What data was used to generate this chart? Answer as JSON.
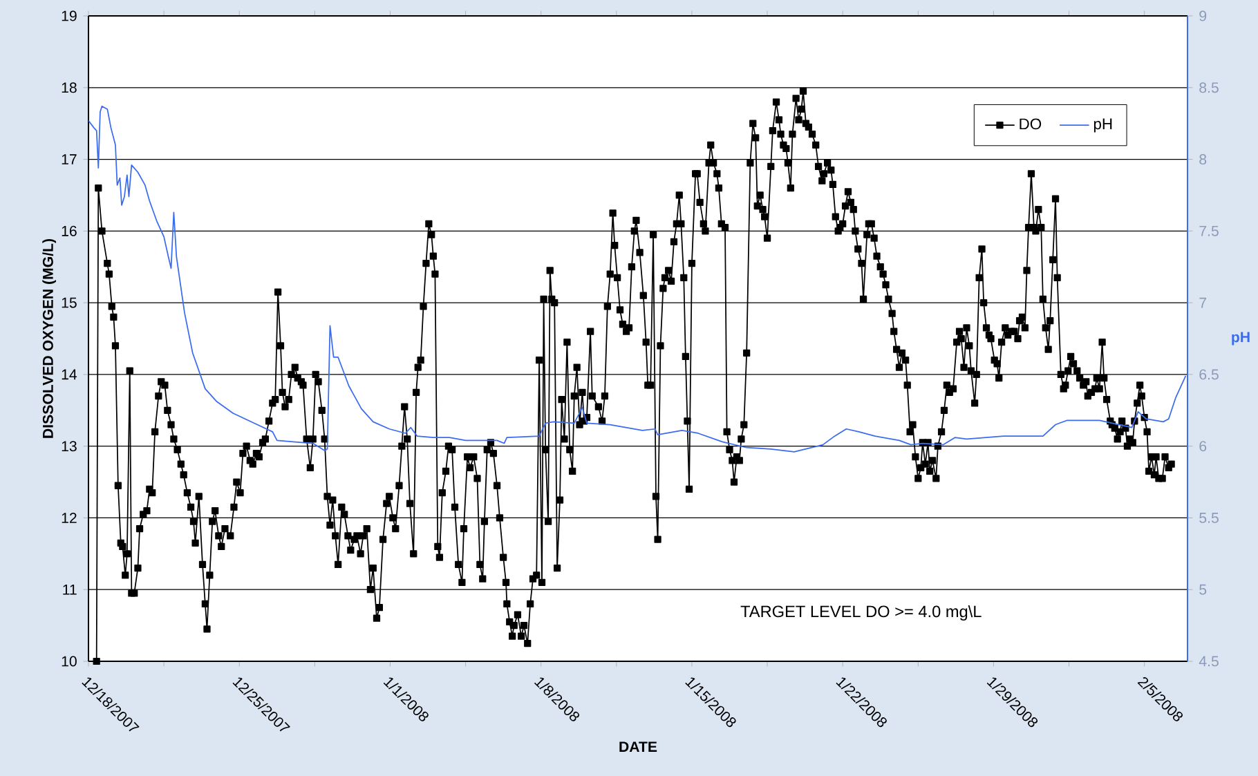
{
  "chart_data": {
    "type": "line",
    "xlabel": "DATE",
    "ylabel": "DISSOLVED OXYGEN (MG/L)",
    "y2label": "pH",
    "annotations": [
      "TARGET LEVEL DO >= 4.0 mg\\L"
    ],
    "xlim": [
      "2007-12-18T00:00",
      "2008-02-07T00:00"
    ],
    "xticks": [
      {
        "value": "2007-12-18T00:00",
        "label": "12/18/2007"
      },
      {
        "value": "2007-12-21T12:00",
        "label": null
      },
      {
        "value": "2007-12-25T00:00",
        "label": "12/25/2007"
      },
      {
        "value": "2007-12-28T12:00",
        "label": null
      },
      {
        "value": "2008-01-01T00:00",
        "label": "1/1/2008"
      },
      {
        "value": "2008-01-04T12:00",
        "label": null
      },
      {
        "value": "2008-01-08T00:00",
        "label": "1/8/2008"
      },
      {
        "value": "2008-01-11T12:00",
        "label": null
      },
      {
        "value": "2008-01-15T00:00",
        "label": "1/15/2008"
      },
      {
        "value": "2008-01-18T12:00",
        "label": null
      },
      {
        "value": "2008-01-22T00:00",
        "label": "1/22/2008"
      },
      {
        "value": "2008-01-25T12:00",
        "label": null
      },
      {
        "value": "2008-01-29T00:00",
        "label": "1/29/2008"
      },
      {
        "value": "2008-02-01T12:00",
        "label": null
      },
      {
        "value": "2008-02-05T00:00",
        "label": "2/5/2008"
      }
    ],
    "ylim": [
      10,
      19
    ],
    "yticks": [
      10,
      11,
      12,
      13,
      14,
      15,
      16,
      17,
      18,
      19
    ],
    "y2lim": [
      4.5,
      9
    ],
    "y2ticks": [
      4.5,
      5,
      5.5,
      6,
      6.5,
      7,
      7.5,
      8,
      8.5,
      9
    ],
    "grid": "y",
    "legend": "top right",
    "series": [
      {
        "name": "DO",
        "color": "#000000",
        "marker": "square",
        "x": [
          "2007-12-18T09:00",
          "2007-12-18T11:00",
          "2007-12-18T15:00",
          "2007-12-18T21:00",
          "2007-12-18T23:00",
          "2007-12-19T02:00",
          "2007-12-19T04:00",
          "2007-12-19T06:00",
          "2007-12-19T09:00",
          "2007-12-19T12:00",
          "2007-12-19T14:00",
          "2007-12-19T17:00",
          "2007-12-19T19:00",
          "2007-12-19T22:00",
          "2007-12-20T00:00",
          "2007-12-20T03:00",
          "2007-12-20T07:00",
          "2007-12-20T09:00",
          "2007-12-20T13:00",
          "2007-12-20T17:00",
          "2007-12-20T20:00",
          "2007-12-20T23:00",
          "2007-12-21T02:00",
          "2007-12-21T06:00",
          "2007-12-21T09:00",
          "2007-12-21T13:00",
          "2007-12-21T16:00",
          "2007-12-21T20:00",
          "2007-12-21T23:00",
          "2007-12-22T03:00",
          "2007-12-22T07:00",
          "2007-12-22T10:00",
          "2007-12-22T14:00",
          "2007-12-22T18:00",
          "2007-12-22T21:00",
          "2007-12-22T23:00",
          "2007-12-23T03:00",
          "2007-12-23T07:00",
          "2007-12-23T10:00",
          "2007-12-23T12:00",
          "2007-12-23T15:00",
          "2007-12-23T18:00",
          "2007-12-23T21:00",
          "2007-12-24T01:00",
          "2007-12-24T04:00",
          "2007-12-24T08:00",
          "2007-12-24T14:00",
          "2007-12-24T18:00",
          "2007-12-24T21:00",
          "2007-12-25T01:00",
          "2007-12-25T04:00",
          "2007-12-25T08:00",
          "2007-12-25T12:00",
          "2007-12-25T15:00",
          "2007-12-25T19:00",
          "2007-12-25T22:00",
          "2007-12-26T02:00",
          "2007-12-26T05:00",
          "2007-12-26T09:00",
          "2007-12-26T13:00",
          "2007-12-26T16:00",
          "2007-12-26T19:00",
          "2007-12-26T22:00",
          "2007-12-27T00:00",
          "2007-12-27T03:00",
          "2007-12-27T07:00",
          "2007-12-27T10:00",
          "2007-12-27T14:00",
          "2007-12-27T17:00",
          "2007-12-27T21:00",
          "2007-12-27T23:00",
          "2007-12-28T03:00",
          "2007-12-28T07:00",
          "2007-12-28T10:00",
          "2007-12-28T13:00",
          "2007-12-28T16:00",
          "2007-12-28T20:00",
          "2007-12-28T23:00",
          "2007-12-29T02:00",
          "2007-12-29T05:00",
          "2007-12-29T08:00",
          "2007-12-29T11:00",
          "2007-12-29T14:00",
          "2007-12-29T18:00",
          "2007-12-29T21:00",
          "2007-12-30T01:00",
          "2007-12-30T04:00",
          "2007-12-30T08:00",
          "2007-12-30T11:00",
          "2007-12-30T15:00",
          "2007-12-30T18:00",
          "2007-12-30T22:00",
          "2007-12-31T02:00",
          "2007-12-31T05:00",
          "2007-12-31T09:00",
          "2007-12-31T12:00",
          "2007-12-31T16:00",
          "2007-12-31T20:00",
          "2007-12-31T23:00",
          "2008-01-01T03:00",
          "2008-01-01T06:00",
          "2008-01-01T10:00",
          "2008-01-01T13:00",
          "2008-01-01T16:00",
          "2008-01-01T19:00",
          "2008-01-01T22:00",
          "2008-01-02T02:00",
          "2008-01-02T05:00",
          "2008-01-02T07:00",
          "2008-01-02T10:00",
          "2008-01-02T13:00",
          "2008-01-02T16:00",
          "2008-01-02T19:00",
          "2008-01-02T22:00",
          "2008-01-03T00:00",
          "2008-01-03T02:00",
          "2008-01-03T05:00",
          "2008-01-03T07:00",
          "2008-01-03T10:00",
          "2008-01-03T14:00",
          "2008-01-03T17:00",
          "2008-01-03T21:00",
          "2008-01-04T00:00",
          "2008-01-04T04:00",
          "2008-01-04T08:00",
          "2008-01-04T10:00",
          "2008-01-04T14:00",
          "2008-01-04T17:00",
          "2008-01-04T21:00",
          "2008-01-05T01:00",
          "2008-01-05T04:00",
          "2008-01-05T07:00",
          "2008-01-05T09:00",
          "2008-01-05T12:00",
          "2008-01-05T16:00",
          "2008-01-05T19:00",
          "2008-01-05T23:00",
          "2008-01-06T02:00",
          "2008-01-06T06:00",
          "2008-01-06T09:00",
          "2008-01-06T10:00",
          "2008-01-06T13:00",
          "2008-01-06T16:00",
          "2008-01-06T18:00",
          "2008-01-06T22:00",
          "2008-01-07T02:00",
          "2008-01-07T05:00",
          "2008-01-07T09:00",
          "2008-01-07T12:00",
          "2008-01-07T15:00",
          "2008-01-07T19:00",
          "2008-01-07T22:00",
          "2008-01-08T01:00",
          "2008-01-08T03:00",
          "2008-01-08T05:00",
          "2008-01-08T08:00",
          "2008-01-08T10:00",
          "2008-01-08T12:00",
          "2008-01-08T15:00",
          "2008-01-08T18:00",
          "2008-01-08T21:00",
          "2008-01-08T23:00",
          "2008-01-09T02:00",
          "2008-01-09T05:00",
          "2008-01-09T08:00",
          "2008-01-09T11:00",
          "2008-01-09T13:00",
          "2008-01-09T16:00",
          "2008-01-09T19:00",
          "2008-01-09T22:00",
          "2008-01-10T00:00",
          "2008-01-10T03:00",
          "2008-01-10T07:00",
          "2008-01-10T09:00",
          "2008-01-10T16:00",
          "2008-01-10T20:00",
          "2008-01-10T23:00",
          "2008-01-11T02:00",
          "2008-01-11T05:00",
          "2008-01-11T08:00",
          "2008-01-11T10:00",
          "2008-01-11T13:00",
          "2008-01-11T16:00",
          "2008-01-11T19:00",
          "2008-01-11T23:00",
          "2008-01-12T02:00",
          "2008-01-12T05:00",
          "2008-01-12T08:00",
          "2008-01-12T10:00",
          "2008-01-12T14:00",
          "2008-01-12T18:00",
          "2008-01-12T21:00",
          "2008-01-12T23:00",
          "2008-01-13T02:00",
          "2008-01-13T05:00",
          "2008-01-13T08:00",
          "2008-01-13T10:00",
          "2008-01-13T13:00",
          "2008-01-13T16:00",
          "2008-01-13T18:00",
          "2008-01-13T22:00",
          "2008-01-14T01:00",
          "2008-01-14T04:00",
          "2008-01-14T07:00",
          "2008-01-14T10:00",
          "2008-01-14T12:00",
          "2008-01-14T15:00",
          "2008-01-14T17:00",
          "2008-01-14T19:00",
          "2008-01-14T21:00",
          "2008-01-15T00:00",
          "2008-01-15T04:00",
          "2008-01-15T06:00",
          "2008-01-15T09:00",
          "2008-01-15T13:00",
          "2008-01-15T15:00",
          "2008-01-15T19:00",
          "2008-01-15T21:00",
          "2008-01-16T00:00",
          "2008-01-16T04:00",
          "2008-01-16T06:00",
          "2008-01-16T09:00",
          "2008-01-16T13:00",
          "2008-01-16T15:00",
          "2008-01-16T18:00",
          "2008-01-16T21:00",
          "2008-01-16T23:00",
          "2008-01-17T02:00",
          "2008-01-17T05:00",
          "2008-01-17T07:00",
          "2008-01-17T10:00",
          "2008-01-17T13:00",
          "2008-01-17T17:00",
          "2008-01-17T20:00",
          "2008-01-17T23:00",
          "2008-01-18T01:00",
          "2008-01-18T04:00",
          "2008-01-18T07:00",
          "2008-01-18T09:00",
          "2008-01-18T12:00",
          "2008-01-18T16:00",
          "2008-01-18T18:00",
          "2008-01-18T22:00",
          "2008-01-19T01:00",
          "2008-01-19T03:00",
          "2008-01-19T06:00",
          "2008-01-19T09:00",
          "2008-01-19T11:00",
          "2008-01-19T14:00",
          "2008-01-19T16:00",
          "2008-01-19T20:00",
          "2008-01-19T23:00",
          "2008-01-20T02:00",
          "2008-01-20T04:00",
          "2008-01-20T07:00",
          "2008-01-20T10:00",
          "2008-01-20T14:00",
          "2008-01-20T18:00",
          "2008-01-20T21:00",
          "2008-01-21T01:00",
          "2008-01-21T03:00",
          "2008-01-21T07:00",
          "2008-01-21T11:00",
          "2008-01-21T13:00",
          "2008-01-21T16:00",
          "2008-01-21T19:00",
          "2008-01-21T21:00",
          "2008-01-22T00:00",
          "2008-01-22T03:00",
          "2008-01-22T06:00",
          "2008-01-22T09:00",
          "2008-01-22T12:00",
          "2008-01-22T14:00",
          "2008-01-22T17:00",
          "2008-01-22T21:00",
          "2008-01-22T23:00",
          "2008-01-23T03:00",
          "2008-01-23T05:00",
          "2008-01-23T08:00",
          "2008-01-23T11:00",
          "2008-01-23T14:00",
          "2008-01-23T18:00",
          "2008-01-23T21:00",
          "2008-01-24T00:00",
          "2008-01-24T03:00",
          "2008-01-24T07:00",
          "2008-01-24T09:00",
          "2008-01-24T12:00",
          "2008-01-24T15:00",
          "2008-01-24T18:00",
          "2008-01-24T22:00",
          "2008-01-25T00:00",
          "2008-01-25T03:00",
          "2008-01-25T06:00",
          "2008-01-25T09:00",
          "2008-01-25T12:00",
          "2008-01-25T15:00",
          "2008-01-25T17:00",
          "2008-01-25T20:00",
          "2008-01-25T23:00",
          "2008-01-26T01:00",
          "2008-01-26T04:00",
          "2008-01-26T08:00",
          "2008-01-26T10:00",
          "2008-01-26T14:00",
          "2008-01-26T17:00",
          "2008-01-26T20:00",
          "2008-01-26T23:00",
          "2008-01-27T03:00",
          "2008-01-27T07:00",
          "2008-01-27T10:00",
          "2008-01-27T12:00",
          "2008-01-27T15:00",
          "2008-01-27T18:00",
          "2008-01-27T21:00",
          "2008-01-27T23:00",
          "2008-01-28T03:00",
          "2008-01-28T05:00",
          "2008-01-28T08:00",
          "2008-01-28T11:00",
          "2008-01-28T13:00",
          "2008-01-28T16:00",
          "2008-01-28T19:00",
          "2008-01-28T21:00",
          "2008-01-29T01:00",
          "2008-01-29T04:00",
          "2008-01-29T06:00",
          "2008-01-29T09:00",
          "2008-01-29T13:00",
          "2008-01-29T16:00",
          "2008-01-29T20:00",
          "2008-01-29T23:00",
          "2008-01-30T03:00",
          "2008-01-30T05:00",
          "2008-01-30T08:00",
          "2008-01-30T11:00",
          "2008-01-30T13:00",
          "2008-01-30T15:00",
          "2008-01-30T18:00",
          "2008-01-30T21:00",
          "2008-01-30T23:00",
          "2008-01-31T02:00",
          "2008-01-31T05:00",
          "2008-01-31T07:00",
          "2008-01-31T10:00",
          "2008-01-31T13:00",
          "2008-01-31T15:00",
          "2008-01-31T18:00",
          "2008-01-31T21:00",
          "2008-01-31T23:00",
          "2008-02-01T03:00",
          "2008-02-01T06:00",
          "2008-02-01T08:00",
          "2008-02-01T11:00",
          "2008-02-01T14:00",
          "2008-02-01T17:00",
          "2008-02-01T21:00",
          "2008-02-02T00:00",
          "2008-02-02T04:00",
          "2008-02-02T07:00",
          "2008-02-02T09:00",
          "2008-02-02T13:00",
          "2008-02-02T17:00",
          "2008-02-02T19:00",
          "2008-02-02T22:00",
          "2008-02-03T01:00",
          "2008-02-03T03:00",
          "2008-02-03T06:00",
          "2008-02-03T10:00",
          "2008-02-03T12:00",
          "2008-02-03T15:00",
          "2008-02-03T18:00",
          "2008-02-03T21:00",
          "2008-02-03T23:00",
          "2008-02-04T03:00",
          "2008-02-04T05:00",
          "2008-02-04T08:00",
          "2008-02-04T11:00",
          "2008-02-04T13:00",
          "2008-02-04T16:00",
          "2008-02-04T19:00",
          "2008-02-04T21:00",
          "2008-02-05T00:00",
          "2008-02-05T03:00",
          "2008-02-05T05:00",
          "2008-02-05T08:00",
          "2008-02-05T11:00",
          "2008-02-05T13:00",
          "2008-02-05T16:00",
          "2008-02-05T20:00",
          "2008-02-05T23:00",
          "2008-02-06T03:00",
          "2008-02-06T06:00"
        ],
        "values": [
          10,
          16.6,
          16.0,
          15.55,
          15.4,
          14.95,
          14.8,
          14.4,
          12.45,
          11.65,
          11.6,
          11.2,
          11.5,
          14.05,
          10.95,
          10.95,
          11.3,
          11.85,
          12.05,
          12.1,
          12.4,
          12.35,
          13.2,
          13.7,
          13.9,
          13.85,
          13.5,
          13.3,
          13.1,
          12.95,
          12.75,
          12.6,
          12.35,
          12.15,
          11.95,
          11.65,
          12.3,
          11.35,
          10.8,
          10.45,
          11.2,
          11.95,
          12.1,
          11.75,
          11.6,
          11.85,
          11.75,
          12.15,
          12.5,
          12.35,
          12.9,
          13.0,
          12.8,
          12.75,
          12.9,
          12.85,
          13.05,
          13.1,
          13.35,
          13.6,
          13.65,
          15.15,
          14.4,
          13.75,
          13.55,
          13.65,
          14.0,
          14.1,
          13.95,
          13.9,
          13.85,
          13.1,
          12.7,
          13.1,
          14.0,
          13.9,
          13.5,
          13.1,
          12.3,
          11.9,
          12.25,
          11.75,
          11.35,
          12.15,
          12.05,
          11.75,
          11.55,
          11.7,
          11.75,
          11.5,
          11.75,
          11.85,
          11.0,
          11.3,
          10.6,
          10.75,
          11.7,
          12.2,
          12.3,
          12.0,
          11.85,
          12.45,
          13.0,
          13.55,
          13.1,
          12.2,
          11.5,
          13.75,
          14.1,
          14.2,
          14.95,
          15.55,
          16.1,
          15.95,
          15.65,
          15.4,
          11.6,
          11.45,
          12.35,
          12.65,
          13.0,
          12.95,
          12.15,
          11.35,
          11.1,
          11.85,
          12.85,
          12.7,
          12.85,
          12.55,
          11.35,
          11.15,
          11.95,
          12.95,
          13.05,
          12.9,
          12.45,
          12.0,
          11.45,
          11.1,
          10.8,
          10.55,
          10.35,
          10.5,
          10.65,
          10.35,
          10.5,
          10.25,
          10.8,
          11.15,
          11.2,
          14.2,
          11.1,
          15.05,
          12.95,
          11.95,
          15.45,
          15.05,
          15.0,
          11.3,
          12.25,
          13.65,
          13.1,
          14.45,
          12.95,
          12.65,
          13.7,
          14.1,
          13.3,
          13.75,
          13.35,
          13.4,
          14.6,
          13.7,
          13.55,
          13.35,
          13.7,
          14.95,
          15.4,
          16.25,
          15.8,
          15.35,
          14.9,
          14.7,
          14.6,
          14.65,
          15.5,
          16.0,
          16.15,
          15.7,
          15.1,
          14.45,
          13.85,
          13.85,
          15.95,
          12.3,
          11.7,
          14.4,
          15.2,
          15.35,
          15.45,
          15.3,
          15.85,
          16.1,
          16.5,
          16.1,
          15.35,
          14.25,
          13.35,
          12.4,
          15.55,
          16.8,
          16.8,
          16.4,
          16.1,
          16.0,
          16.95,
          17.2,
          16.95,
          16.8,
          16.6,
          16.1,
          16.05,
          13.2,
          12.95,
          12.8,
          12.5,
          12.85,
          12.8,
          13.1,
          13.3,
          14.3,
          16.95,
          17.5,
          17.3,
          16.35,
          16.5,
          16.3,
          16.2,
          15.9,
          16.9,
          17.4,
          17.8,
          17.55,
          17.35,
          17.2,
          17.15,
          16.95,
          16.6,
          17.35,
          17.85,
          17.55,
          17.7,
          17.95,
          17.5,
          17.45,
          17.35,
          17.2,
          16.9,
          16.7,
          16.8,
          16.95,
          16.85,
          16.65,
          16.2,
          16.0,
          16.05,
          16.1,
          16.35,
          16.55,
          16.4,
          16.3,
          16.0,
          15.75,
          15.55,
          15.05,
          15.95,
          16.1,
          16.1,
          15.9,
          15.65,
          15.5,
          15.4,
          15.25,
          15.05,
          14.85,
          14.6,
          14.35,
          14.1,
          14.3,
          14.2,
          13.85,
          13.2,
          13.3,
          12.85,
          12.55,
          12.7,
          13.05,
          12.75,
          13.05,
          12.65,
          12.8,
          12.55,
          13.0,
          13.2,
          13.5,
          13.85,
          13.75,
          13.8,
          14.45,
          14.6,
          14.5,
          14.1,
          14.65,
          14.4,
          14.05,
          13.6,
          14.0,
          15.35,
          15.75,
          15.0,
          14.65,
          14.55,
          14.5,
          14.2,
          14.15,
          13.95,
          14.45,
          14.65,
          14.55,
          14.6,
          14.6,
          14.5,
          14.75,
          14.8,
          14.65,
          15.45,
          16.05,
          16.8,
          16.05,
          16.0,
          16.3,
          16.05,
          15.05,
          14.65,
          14.35,
          14.75,
          15.6,
          16.45,
          15.35,
          14.0,
          13.8,
          13.85,
          14.05,
          14.25,
          14.15,
          14.05,
          13.95,
          13.85,
          13.9,
          13.7,
          13.75,
          13.8,
          13.95,
          13.8,
          14.45,
          13.95,
          13.65,
          13.35,
          13.3,
          13.25,
          13.1,
          13.2,
          13.35,
          13.25,
          13.0,
          13.1,
          13.05,
          13.35,
          13.6,
          13.85,
          13.7,
          13.4,
          13.2,
          12.65,
          12.85,
          12.6,
          12.85,
          12.55,
          12.55,
          12.85,
          12.7,
          12.75
        ]
      },
      {
        "name": "pH",
        "color": "#3b6cf0",
        "marker": "none",
        "axis": "y2",
        "x": [
          "2007-12-18T00:00",
          "2007-12-18T06:00",
          "2007-12-18T09:00",
          "2007-12-18T11:00",
          "2007-12-18T13:00",
          "2007-12-18T15:00",
          "2007-12-18T21:00",
          "2007-12-19T01:00",
          "2007-12-19T06:00",
          "2007-12-19T08:00",
          "2007-12-19T11:00",
          "2007-12-19T13:00",
          "2007-12-19T16:00",
          "2007-12-19T19:00",
          "2007-12-19T21:00",
          "2007-12-20T00:00",
          "2007-12-20T07:00",
          "2007-12-20T15:00",
          "2007-12-20T20:00",
          "2007-12-21T04:00",
          "2007-12-21T12:00",
          "2007-12-21T17:00",
          "2007-12-21T20:00",
          "2007-12-21T23:00",
          "2007-12-22T02:00",
          "2007-12-22T11:00",
          "2007-12-22T20:00",
          "2007-12-23T10:00",
          "2007-12-23T23:00",
          "2007-12-24T17:00",
          "2007-12-25T20:00",
          "2007-12-26T13:00",
          "2007-12-26T18:00",
          "2007-12-27T12:00",
          "2007-12-28T10:00",
          "2007-12-28T23:00",
          "2007-12-29T02:00",
          "2007-12-29T05:00",
          "2007-12-29T09:00",
          "2007-12-29T14:00",
          "2007-12-30T02:00",
          "2007-12-30T16:00",
          "2007-12-31T05:00",
          "2007-12-31T23:00",
          "2008-01-01T17:00",
          "2008-01-01T23:00",
          "2008-01-02T06:00",
          "2008-01-03T00:00",
          "2008-01-03T18:00",
          "2008-01-04T12:00",
          "2008-01-05T23:00",
          "2008-01-06T07:00",
          "2008-01-06T10:00",
          "2008-01-07T22:00",
          "2008-01-08T05:00",
          "2008-01-08T14:00",
          "2008-01-09T13:00",
          "2008-01-09T22:00",
          "2008-01-10T03:00",
          "2008-01-11T05:00",
          "2008-01-12T17:00",
          "2008-01-13T07:00",
          "2008-01-13T10:00",
          "2008-01-14T13:00",
          "2008-01-15T07:00",
          "2008-01-16T10:00",
          "2008-01-17T13:00",
          "2008-01-18T16:00",
          "2008-01-19T18:00",
          "2008-01-21T02:00",
          "2008-01-21T15:00",
          "2008-01-22T04:00",
          "2008-01-22T18:00",
          "2008-01-23T12:00",
          "2008-01-24T15:00",
          "2008-01-25T04:00",
          "2008-01-25T17:00",
          "2008-01-26T16:00",
          "2008-01-27T05:00",
          "2008-01-27T18:00",
          "2008-01-29T11:00",
          "2008-01-31T07:00",
          "2008-01-31T21:00",
          "2008-02-01T10:00",
          "2008-02-02T22:00",
          "2008-02-03T20:00",
          "2008-02-04T10:00",
          "2008-02-04T17:00",
          "2008-02-05T02:00",
          "2008-02-05T21:00",
          "2008-02-06T03:00",
          "2008-02-06T11:00",
          "2008-02-06T22:00"
        ],
        "values": [
          8.27,
          8.22,
          8.2,
          7.94,
          8.33,
          8.37,
          8.35,
          8.22,
          8.1,
          7.82,
          7.87,
          7.68,
          7.74,
          7.89,
          7.74,
          7.96,
          7.91,
          7.82,
          7.71,
          7.57,
          7.46,
          7.32,
          7.24,
          7.63,
          7.32,
          6.93,
          6.65,
          6.4,
          6.31,
          6.23,
          6.15,
          6.1,
          6.04,
          6.03,
          6.02,
          5.97,
          5.98,
          6.84,
          6.62,
          6.62,
          6.42,
          6.26,
          6.17,
          6.12,
          6.09,
          6.13,
          6.07,
          6.06,
          6.06,
          6.04,
          6.04,
          6.02,
          6.06,
          6.07,
          6.16,
          6.17,
          6.16,
          6.27,
          6.16,
          6.15,
          6.11,
          6.12,
          6.08,
          6.11,
          6.09,
          6.03,
          5.99,
          5.98,
          5.96,
          6.01,
          6.07,
          6.12,
          6.1,
          6.07,
          6.04,
          6.01,
          6.02,
          6.01,
          6.06,
          6.05,
          6.07,
          6.07,
          6.15,
          6.18,
          6.18,
          6.15,
          6.13,
          6.24,
          6.19,
          6.17,
          6.19,
          6.34,
          6.49
        ]
      }
    ]
  }
}
